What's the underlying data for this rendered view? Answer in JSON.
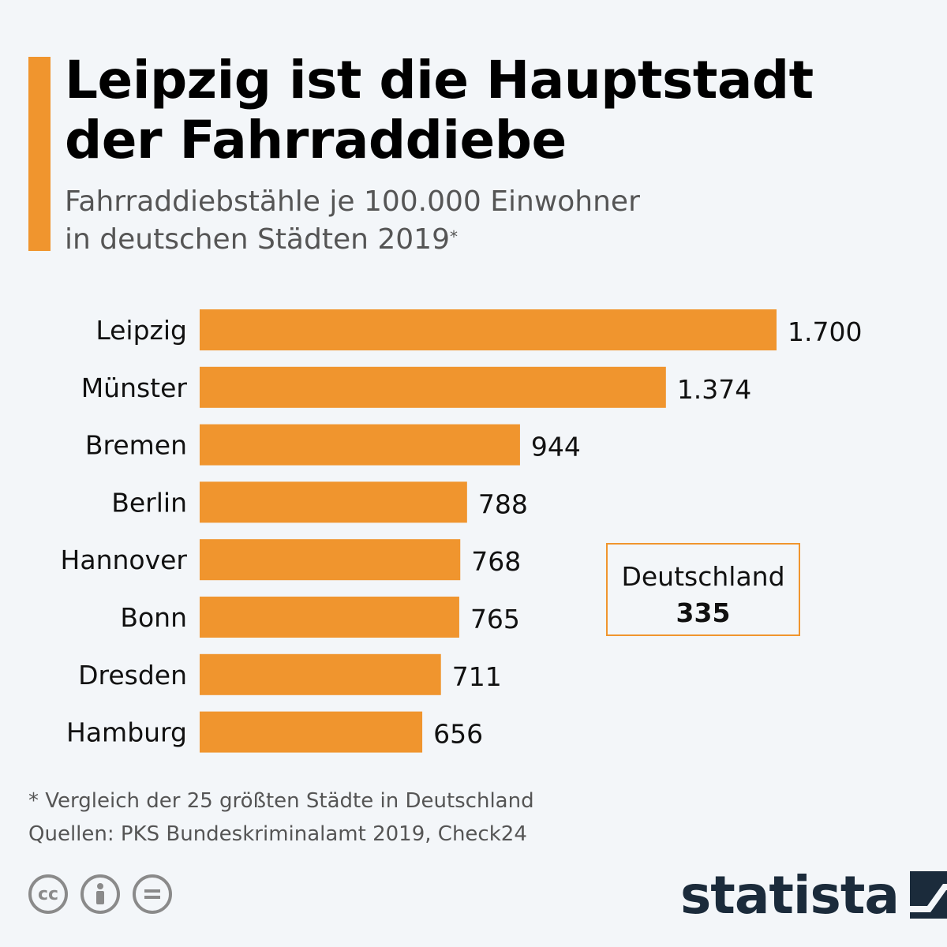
{
  "header": {
    "title_line1": "Leipzig ist die Hauptstadt",
    "title_line2": "der Fahrraddiebe",
    "subtitle_line1": "Fahrraddiebstähle je 100.000 Einwohner",
    "subtitle_line2": "in deutschen Städten 2019",
    "subtitle_mark": "*"
  },
  "average_box": {
    "label": "Deutschland",
    "value": "335"
  },
  "footer": {
    "footnote": "* Vergleich der 25 größten Städte in Deutschland",
    "sources": "Quellen: PKS Bundeskriminalamt 2019, Check24",
    "brand": "statista"
  },
  "icons": {
    "license": [
      "cc-icon",
      "attribution-icon",
      "no-derivatives-icon"
    ],
    "brand_logo": "statista-logo-icon"
  },
  "colors": {
    "bar": "#f0952e",
    "accent": "#f0952e",
    "brand": "#1b2b3b",
    "background": "#f3f6f9"
  },
  "chart_data": {
    "type": "bar",
    "orientation": "horizontal",
    "categories": [
      "Leipzig",
      "Münster",
      "Bremen",
      "Berlin",
      "Hannover",
      "Bonn",
      "Dresden",
      "Hamburg"
    ],
    "values": [
      1700,
      1374,
      944,
      788,
      768,
      765,
      711,
      656
    ],
    "value_labels": [
      "1.700",
      "1.374",
      "944",
      "788",
      "768",
      "765",
      "711",
      "656"
    ],
    "xlim": [
      0,
      1700
    ],
    "grid": false
  }
}
